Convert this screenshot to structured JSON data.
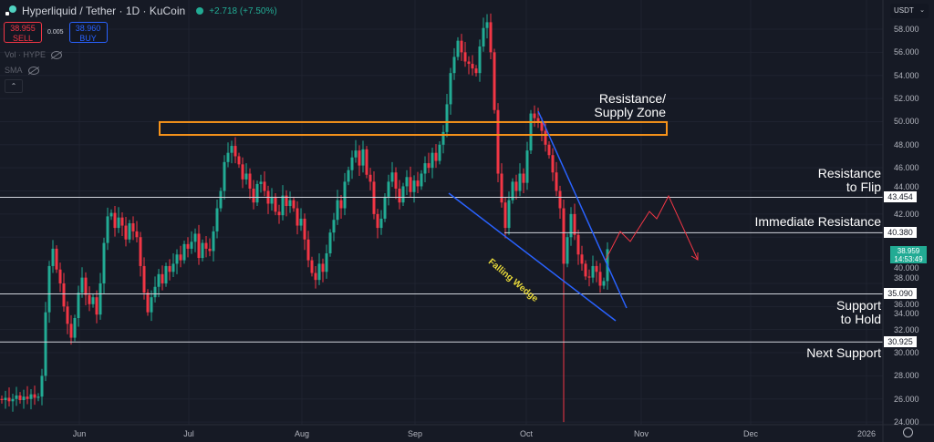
{
  "header": {
    "symbol_title": "Hyperliquid / Tether · 1D · KuCoin",
    "change": "+2.718 (+7.50%)",
    "market_status_color": "#22ab94"
  },
  "trade": {
    "sell_price": "38.955",
    "sell_label": "SELL",
    "spread": "0.005",
    "buy_price": "38.960",
    "buy_label": "BUY"
  },
  "indicators": [
    {
      "label": "Vol · HYPE",
      "icon": "eye-off-icon"
    },
    {
      "label": "SMA",
      "icon": "eye-off-icon"
    }
  ],
  "collapse_icon": "chevron-up-icon",
  "currency_selector": "USDT",
  "current_price": {
    "price": "38.959",
    "countdown": "14:53:49",
    "color": "#22ab94"
  },
  "level_tags": [
    "43.454",
    "40.380",
    "35.090",
    "30.925"
  ],
  "annotations": {
    "supply_zone": "Resistance/\nSupply Zone",
    "resistance_flip": "Resistance\nto Flip",
    "immediate_resistance": "Immediate Resistance",
    "support_hold": "Support\nto Hold",
    "next_support": "Next Support",
    "pattern": "Falling Wedge"
  },
  "chart_data": {
    "type": "candlestick",
    "title": "",
    "colors": {
      "up": "#22ab94",
      "down": "#f23645",
      "zone": "#f7931a",
      "wedge": "#2962ff",
      "projection": "#f23645",
      "level": "#d1d4dc"
    },
    "ylim": [
      24,
      58
    ],
    "grid": true,
    "y_ticks": [
      "58.000",
      "56.000",
      "54.000",
      "52.000",
      "50.000",
      "48.000",
      "46.000",
      "44.000",
      "42.000",
      "40.000",
      "38.000",
      "36.000",
      "34.000",
      "32.000",
      "30.000",
      "28.000",
      "26.000",
      "24.000"
    ],
    "x_ticks": [
      "Jun",
      "Jul",
      "Aug",
      "Sep",
      "Oct",
      "Nov",
      "Dec",
      "2026"
    ],
    "first_open": 26.0,
    "closes": [
      25.9,
      26.1,
      25.8,
      26.0,
      26.3,
      25.9,
      26.2,
      26.0,
      26.4,
      26.1,
      26.2,
      28.0,
      33.5,
      37.5,
      39.0,
      37.2,
      36.0,
      34.0,
      32.5,
      31.3,
      33.0,
      35.2,
      36.5,
      35.0,
      34.2,
      34.8,
      33.3,
      36.0,
      39.5,
      41.8,
      42.1,
      40.8,
      41.7,
      41.0,
      39.8,
      41.2,
      40.5,
      40.0,
      37.5,
      35.2,
      33.5,
      34.8,
      35.7,
      36.8,
      36.0,
      37.5,
      37.0,
      37.7,
      38.5,
      38.0,
      39.4,
      39.0,
      39.6,
      40.3,
      38.2,
      39.5,
      39.0,
      38.8,
      40.5,
      42.5,
      44.0,
      46.5,
      47.3,
      47.9,
      47.0,
      46.3,
      45.0,
      45.5,
      44.2,
      43.0,
      44.6,
      44.8,
      44.0,
      42.9,
      43.5,
      42.2,
      41.9,
      43.6,
      42.7,
      43.2,
      42.5,
      41.0,
      41.6,
      39.8,
      38.0,
      36.9,
      36.3,
      37.7,
      37.0,
      38.6,
      40.4,
      41.5,
      43.2,
      42.5,
      44.8,
      45.8,
      46.9,
      47.5,
      46.2,
      47.6,
      45.4,
      44.8,
      42.0,
      40.8,
      41.6,
      43.5,
      44.8,
      45.6,
      44.2,
      43.0,
      44.4,
      45.2,
      43.9,
      44.9,
      44.4,
      45.5,
      46.4,
      46.0,
      47.3,
      46.6,
      48.0,
      49.1,
      51.5,
      54.2,
      55.6,
      57.0,
      56.0,
      55.2,
      55.0,
      54.6,
      54.2,
      56.5,
      58.1,
      58.6,
      56.0,
      51.0,
      45.5,
      43.0,
      40.8,
      43.2,
      44.8,
      44.0,
      45.5,
      44.7,
      47.5,
      50.7,
      50.3,
      49.9,
      49.2,
      48.0,
      47.1,
      45.6,
      44.0,
      42.5,
      37.7,
      40.0,
      42.0,
      40.2,
      38.5,
      37.7,
      36.6,
      36.5,
      37.5,
      37.0,
      35.8,
      36.2,
      38.959
    ],
    "notable_wicks": [
      {
        "candle": 154,
        "low": 24.0
      },
      {
        "candle": 133,
        "high": 59.3
      },
      {
        "candle": 146,
        "high": 51.4
      }
    ],
    "levels": [
      43.454,
      40.38,
      35.09,
      30.925
    ],
    "supply_zone": [
      48.85,
      49.96
    ]
  }
}
